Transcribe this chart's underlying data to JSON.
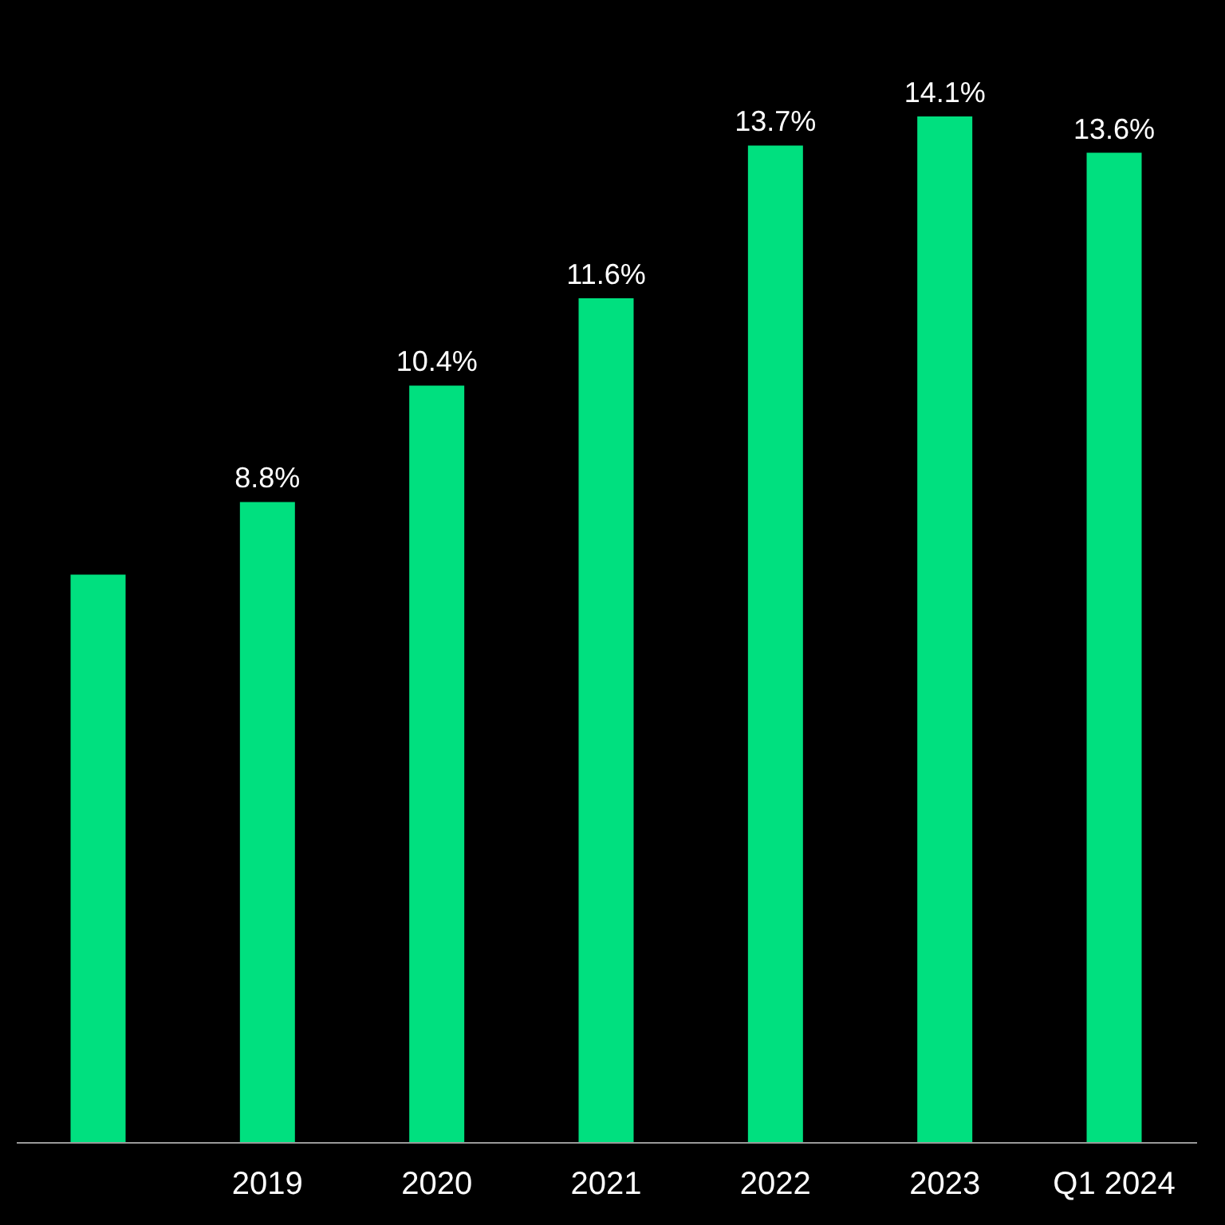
{
  "chart_data": {
    "type": "bar",
    "categories": [
      null,
      "2019",
      "2020",
      "2021",
      "2022",
      "2023",
      "Q1 2024"
    ],
    "values": [
      7.8,
      8.8,
      10.4,
      11.6,
      13.7,
      14.1,
      13.6
    ],
    "value_labels": [
      null,
      "8.8%",
      "10.4%",
      "11.6%",
      "13.7%",
      "14.1%",
      "13.6%"
    ],
    "color": "#00e07f"
  }
}
